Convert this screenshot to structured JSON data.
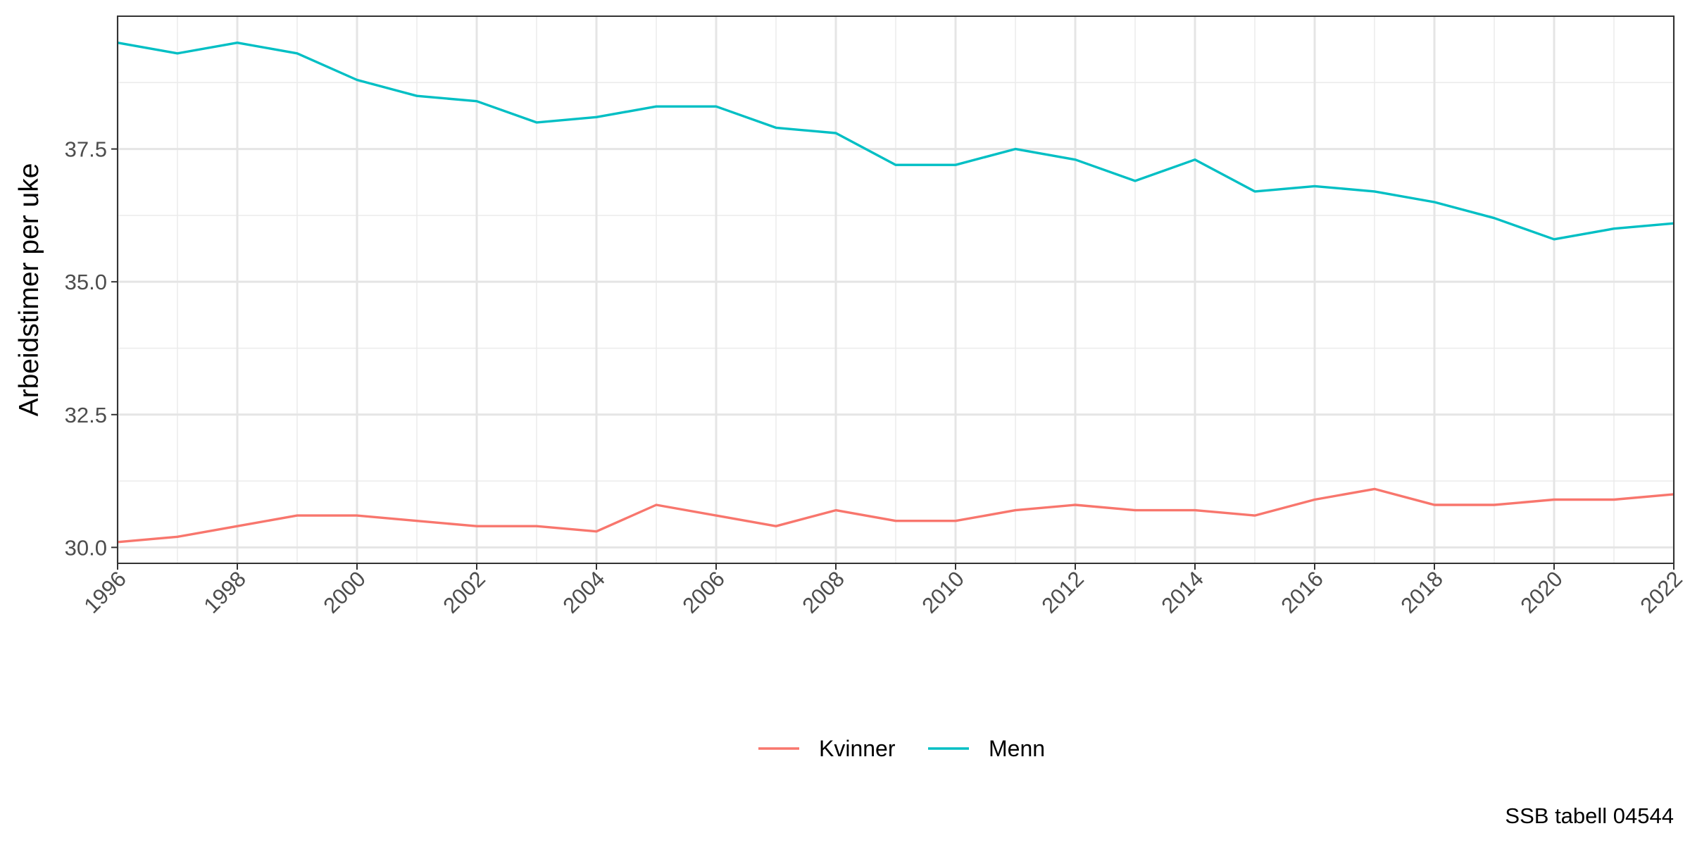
{
  "chart_data": {
    "type": "line",
    "title": "",
    "xlabel": "",
    "ylabel": "Arbeidstimer per uke",
    "caption": "SSB tabell 04544",
    "x": [
      1996,
      1997,
      1998,
      1999,
      2000,
      2001,
      2002,
      2003,
      2004,
      2005,
      2006,
      2007,
      2008,
      2009,
      2010,
      2011,
      2012,
      2013,
      2014,
      2015,
      2016,
      2017,
      2018,
      2019,
      2020,
      2021,
      2022
    ],
    "xlim": [
      1996,
      2022
    ],
    "ylim": [
      29.7,
      40.0
    ],
    "x_ticks": [
      "1996",
      "1998",
      "2000",
      "2002",
      "2004",
      "2006",
      "2008",
      "2010",
      "2012",
      "2014",
      "2016",
      "2018",
      "2020",
      "2022"
    ],
    "y_ticks": [
      "30.0",
      "32.5",
      "35.0",
      "37.5"
    ],
    "grid": true,
    "legend_position": "bottom",
    "series": [
      {
        "name": "Kvinner",
        "color": "#F8766D",
        "values": [
          30.1,
          30.2,
          30.4,
          30.6,
          30.6,
          30.5,
          30.4,
          30.4,
          30.3,
          30.8,
          30.6,
          30.4,
          30.7,
          30.5,
          30.5,
          30.7,
          30.8,
          30.7,
          30.7,
          30.6,
          30.9,
          31.1,
          30.8,
          30.8,
          30.9,
          30.9,
          31.0
        ]
      },
      {
        "name": "Menn",
        "color": "#00BFC4",
        "values": [
          39.5,
          39.3,
          39.5,
          39.3,
          38.8,
          38.5,
          38.4,
          38.0,
          38.1,
          38.3,
          38.3,
          37.9,
          37.8,
          37.2,
          37.2,
          37.5,
          37.3,
          36.9,
          37.3,
          36.7,
          36.8,
          36.7,
          36.5,
          36.2,
          35.8,
          36.0,
          36.1
        ]
      }
    ]
  }
}
